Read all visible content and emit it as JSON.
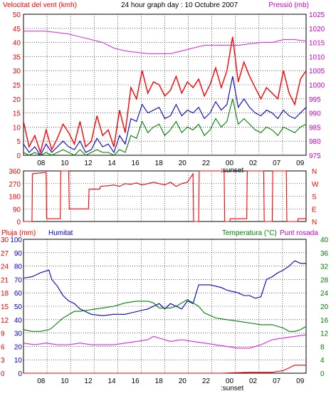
{
  "chart_data": [
    {
      "type": "line",
      "title": "24 hour graph day : 10 Octubre 2007",
      "left_label": "Velocitat del vent (kmh)",
      "right_label": "Pressió (mb)",
      "y_left_ticks": [
        "0",
        "5",
        "10",
        "15",
        "20",
        "25",
        "30",
        "35",
        "40",
        "45",
        "50"
      ],
      "y_left_lim": [
        0,
        50
      ],
      "y_right_ticks": [
        "975",
        "980",
        "985",
        "990",
        "995",
        "1000",
        "1005",
        "1010",
        "1015",
        "1020",
        "1025"
      ],
      "y_right_lim": [
        975,
        1025
      ],
      "x_ticks": [
        "08",
        "10",
        "12",
        "14",
        "16",
        "18",
        "20",
        "22",
        "00",
        "02",
        "07",
        "09"
      ],
      "x_sub_label": ":sunset",
      "grid": true,
      "colors": {
        "gust": "#ff0000",
        "avg": "#0000cc",
        "min": "#008000",
        "pressure": "#e020e0",
        "text_left": "#ff0000",
        "text_right": "#cc00cc"
      },
      "series": [
        {
          "key": "pressure",
          "x": [
            0,
            4,
            8,
            12,
            16,
            20,
            24,
            28,
            32,
            36,
            40,
            44,
            48,
            52,
            56,
            60,
            64,
            68,
            72,
            76,
            80,
            84,
            88,
            92,
            96,
            100
          ],
          "values": [
            1019,
            1019,
            1019,
            1018.5,
            1018,
            1017,
            1016,
            1015,
            1013,
            1012,
            1011.5,
            1011,
            1011,
            1011,
            1012,
            1013,
            1014,
            1014,
            1014,
            1014,
            1014.5,
            1015,
            1015,
            1016,
            1016,
            1015.5
          ]
        },
        {
          "key": "gust",
          "x": [
            0,
            2,
            4,
            6,
            8,
            10,
            12,
            14,
            16,
            18,
            20,
            22,
            24,
            26,
            28,
            30,
            32,
            34,
            36,
            38,
            40,
            42,
            44,
            46,
            48,
            50,
            52,
            54,
            56,
            58,
            60,
            62,
            64,
            66,
            68,
            70,
            72,
            74,
            76,
            78,
            80,
            82,
            84,
            86,
            88,
            90,
            92,
            94,
            96,
            98,
            100
          ],
          "values": [
            12,
            3,
            7,
            1,
            9,
            2,
            6,
            11,
            8,
            4,
            12,
            3,
            5,
            14,
            7,
            9,
            3,
            16,
            8,
            24,
            20,
            30,
            22,
            26,
            25,
            21,
            23,
            28,
            22,
            26,
            24,
            27,
            21,
            25,
            31,
            24,
            30,
            42,
            26,
            33,
            28,
            24,
            20,
            24,
            22,
            20,
            30,
            22,
            18,
            27,
            30
          ]
        },
        {
          "key": "avg",
          "x": [
            0,
            2,
            4,
            6,
            8,
            10,
            12,
            14,
            16,
            18,
            20,
            22,
            24,
            26,
            28,
            30,
            32,
            34,
            36,
            38,
            40,
            42,
            44,
            46,
            48,
            50,
            52,
            54,
            56,
            58,
            60,
            62,
            64,
            66,
            68,
            70,
            72,
            74,
            76,
            78,
            80,
            82,
            84,
            86,
            88,
            90,
            92,
            94,
            96,
            98,
            100
          ],
          "values": [
            4,
            1,
            3,
            0,
            4,
            1,
            3,
            5,
            3,
            2,
            5,
            1,
            2,
            6,
            3,
            4,
            1,
            7,
            4,
            13,
            12,
            18,
            15,
            16,
            17,
            13,
            14,
            18,
            14,
            16,
            15,
            17,
            13,
            15,
            19,
            16,
            18,
            28,
            17,
            20,
            17,
            15,
            14,
            16,
            15,
            13,
            16,
            14,
            13,
            15,
            17
          ]
        },
        {
          "key": "min",
          "x": [
            0,
            2,
            4,
            6,
            8,
            10,
            12,
            14,
            16,
            18,
            20,
            22,
            24,
            26,
            28,
            30,
            32,
            34,
            36,
            38,
            40,
            42,
            44,
            46,
            48,
            50,
            52,
            54,
            56,
            58,
            60,
            62,
            64,
            66,
            68,
            70,
            72,
            74,
            76,
            78,
            80,
            82,
            84,
            86,
            88,
            90,
            92,
            94,
            96,
            98,
            100
          ],
          "values": [
            1,
            0,
            1,
            0,
            1,
            0,
            1,
            2,
            1,
            0,
            2,
            0,
            1,
            2,
            1,
            1,
            0,
            2,
            1,
            7,
            6,
            12,
            8,
            10,
            11,
            7,
            9,
            12,
            8,
            10,
            9,
            11,
            7,
            9,
            13,
            10,
            12,
            20,
            11,
            13,
            11,
            9,
            8,
            10,
            9,
            7,
            10,
            9,
            8,
            10,
            11
          ]
        }
      ]
    },
    {
      "type": "line",
      "title": "",
      "y_left_ticks": [
        "360",
        "270",
        "180",
        "90",
        "0"
      ],
      "y_left_lim": [
        0,
        360
      ],
      "y_right_ticks": [
        "N",
        "W",
        "S",
        "E",
        "N"
      ],
      "grid": true,
      "series": [
        {
          "key": "direction",
          "color": "#ff0000",
          "x": [
            0,
            3,
            3.2,
            8,
            8.2,
            13,
            13.2,
            16,
            16.2,
            23,
            23.2,
            27,
            27.2,
            30,
            32,
            34,
            36,
            38,
            40,
            42,
            44,
            46,
            48,
            50,
            52,
            54,
            56,
            58,
            60,
            60.2,
            62,
            62.2,
            71,
            71.2,
            73,
            73.2,
            79,
            79.2,
            85,
            85.2,
            88,
            88.2,
            93,
            93.2,
            97,
            97.2,
            100
          ],
          "values": [
            0,
            0,
            340,
            350,
            20,
            20,
            360,
            360,
            90,
            90,
            230,
            230,
            250,
            255,
            260,
            250,
            270,
            265,
            275,
            260,
            270,
            280,
            270,
            260,
            280,
            250,
            270,
            280,
            340,
            0,
            0,
            360,
            360,
            0,
            0,
            20,
            20,
            360,
            360,
            0,
            0,
            360,
            360,
            0,
            0,
            20,
            20
          ]
        }
      ]
    },
    {
      "type": "line",
      "left_labels": [
        "Pluja (mm)",
        "Humitat"
      ],
      "right_labels": [
        "Temperatura (°C)",
        "Punt rosada"
      ],
      "y_left_pluja_ticks": [
        "0",
        "3",
        "6",
        "9",
        "12",
        "15",
        "18",
        "21",
        "24",
        "27",
        "30"
      ],
      "y_left_hum_ticks": [
        "0",
        "10",
        "20",
        "30",
        "40",
        "50",
        "60",
        "70",
        "80",
        "90",
        "100"
      ],
      "y_right_ticks": [
        "0",
        "2",
        "4",
        "6",
        "8",
        "10",
        "12",
        "14",
        "16",
        "18",
        "20",
        "22",
        "24",
        "26",
        "28",
        "30",
        "32",
        "34",
        "36",
        "38",
        "40"
      ],
      "y_right_lim": [
        0,
        40
      ],
      "x_ticks": [
        "08",
        "10",
        "12",
        "14",
        "16",
        "18",
        "20",
        "22",
        "00",
        "02",
        "07",
        "09"
      ],
      "x_sub_label": ":sunset",
      "grid": true,
      "colors": {
        "pluja": "#ff0000",
        "humitat": "#0000cc",
        "temperatura": "#008000",
        "punt_rosada": "#e020e0"
      },
      "series": [
        {
          "key": "humitat",
          "name": "Humitat",
          "x": [
            0,
            3,
            6,
            9,
            10,
            12,
            14,
            16,
            18,
            20,
            24,
            28,
            32,
            36,
            38,
            40,
            42,
            44,
            46,
            48,
            50,
            52,
            54,
            56,
            58,
            60,
            62,
            64,
            66,
            68,
            70,
            72,
            74,
            76,
            78,
            80,
            82,
            84,
            86,
            88,
            90,
            92,
            94,
            96,
            98,
            100
          ],
          "values": [
            71,
            72,
            75,
            77,
            70,
            65,
            58,
            54,
            52,
            48,
            44,
            43,
            44,
            44,
            45,
            46,
            47,
            48,
            50,
            52,
            48,
            52,
            50,
            48,
            54,
            52,
            66,
            66,
            66,
            65,
            64,
            62,
            61,
            60,
            58,
            58,
            56,
            57,
            70,
            72,
            75,
            77,
            80,
            84,
            82,
            82
          ]
        },
        {
          "key": "temperatura",
          "name": "Temperatura (°C)",
          "x": [
            0,
            3,
            6,
            9,
            10,
            12,
            14,
            16,
            18,
            20,
            24,
            28,
            32,
            36,
            40,
            44,
            46,
            48,
            50,
            52,
            54,
            56,
            58,
            60,
            62,
            64,
            68,
            72,
            76,
            80,
            84,
            88,
            92,
            94,
            96,
            98,
            100
          ],
          "values": [
            13,
            12.5,
            12.5,
            13,
            13.5,
            15,
            16.5,
            17.5,
            18.5,
            18.5,
            19,
            19.5,
            20,
            21,
            21.5,
            21.5,
            21,
            19.5,
            19.5,
            19.5,
            20,
            21,
            22,
            21,
            20,
            18,
            16.5,
            16,
            15.5,
            15,
            14.5,
            14.5,
            13.5,
            12.5,
            12.5,
            13,
            14
          ]
        },
        {
          "key": "punt_rosada",
          "name": "Punt rosada",
          "x": [
            0,
            4,
            8,
            12,
            16,
            20,
            24,
            28,
            32,
            36,
            40,
            44,
            46,
            48,
            50,
            52,
            56,
            60,
            64,
            68,
            72,
            76,
            80,
            84,
            88,
            92,
            96,
            100
          ],
          "values": [
            9,
            8.5,
            9,
            8.5,
            8.5,
            9,
            8.5,
            8.5,
            8.5,
            9,
            9.5,
            10,
            11,
            10.5,
            10,
            9.5,
            10,
            9.5,
            9,
            8.5,
            8,
            7.5,
            7.5,
            8.5,
            10,
            10.5,
            11,
            11.5
          ]
        },
        {
          "key": "pluja",
          "name": "Pluja (mm)",
          "x": [
            0,
            70,
            80,
            88,
            90,
            92,
            94,
            96,
            100
          ],
          "values": [
            0,
            0,
            0.2,
            0.2,
            0.4,
            0.6,
            1.2,
            1.8,
            1.8
          ]
        }
      ]
    }
  ]
}
